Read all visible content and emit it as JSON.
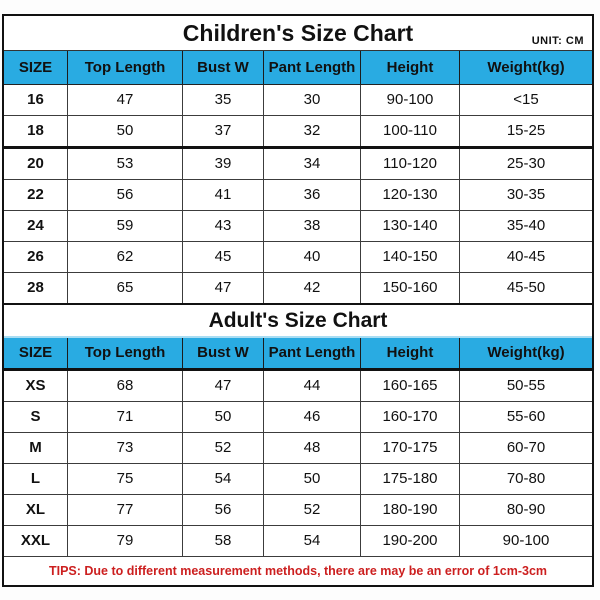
{
  "unit_label": "UNIT: CM",
  "colors": {
    "header_bg": "#29abe2",
    "tips_red": "#cc1f1f",
    "grid_line": "#3c3c3c",
    "outer_border": "#111111"
  },
  "children": {
    "title": "Children's Size Chart",
    "headers": [
      "SIZE",
      "Top Length",
      "Bust W",
      "Pant Length",
      "Height",
      "Weight(kg)"
    ],
    "rows": [
      [
        "16",
        "47",
        "35",
        "30",
        "90-100",
        "<15"
      ],
      [
        "18",
        "50",
        "37",
        "32",
        "100-110",
        "15-25"
      ],
      [
        "20",
        "53",
        "39",
        "34",
        "110-120",
        "25-30"
      ],
      [
        "22",
        "56",
        "41",
        "36",
        "120-130",
        "30-35"
      ],
      [
        "24",
        "59",
        "43",
        "38",
        "130-140",
        "35-40"
      ],
      [
        "26",
        "62",
        "45",
        "40",
        "140-150",
        "40-45"
      ],
      [
        "28",
        "65",
        "47",
        "42",
        "150-160",
        "45-50"
      ]
    ]
  },
  "adult": {
    "title": "Adult's Size Chart",
    "headers": [
      "SIZE",
      "Top Length",
      "Bust W",
      "Pant Length",
      "Height",
      "Weight(kg)"
    ],
    "rows": [
      [
        "XS",
        "68",
        "47",
        "44",
        "160-165",
        "50-55"
      ],
      [
        "S",
        "71",
        "50",
        "46",
        "160-170",
        "55-60"
      ],
      [
        "M",
        "73",
        "52",
        "48",
        "170-175",
        "60-70"
      ],
      [
        "L",
        "75",
        "54",
        "50",
        "175-180",
        "70-80"
      ],
      [
        "XL",
        "77",
        "56",
        "52",
        "180-190",
        "80-90"
      ],
      [
        "XXL",
        "79",
        "58",
        "54",
        "190-200",
        "90-100"
      ]
    ]
  },
  "tips": "TIPS: Due to different measurement methods, there are may be an error of 1cm-3cm",
  "chart_data": [
    {
      "type": "table",
      "title": "Children's Size Chart",
      "unit": "CM",
      "columns": [
        "SIZE",
        "Top Length",
        "Bust W",
        "Pant Length",
        "Height",
        "Weight(kg)"
      ],
      "rows": [
        [
          "16",
          47,
          35,
          30,
          "90-100",
          "<15"
        ],
        [
          "18",
          50,
          37,
          32,
          "100-110",
          "15-25"
        ],
        [
          "20",
          53,
          39,
          34,
          "110-120",
          "25-30"
        ],
        [
          "22",
          56,
          41,
          36,
          "120-130",
          "30-35"
        ],
        [
          "24",
          59,
          43,
          38,
          "130-140",
          "35-40"
        ],
        [
          "26",
          62,
          45,
          40,
          "140-150",
          "40-45"
        ],
        [
          "28",
          65,
          47,
          42,
          "150-160",
          "45-50"
        ]
      ]
    },
    {
      "type": "table",
      "title": "Adult's Size Chart",
      "unit": "CM",
      "columns": [
        "SIZE",
        "Top Length",
        "Bust W",
        "Pant Length",
        "Height",
        "Weight(kg)"
      ],
      "rows": [
        [
          "XS",
          68,
          47,
          44,
          "160-165",
          "50-55"
        ],
        [
          "S",
          71,
          50,
          46,
          "160-170",
          "55-60"
        ],
        [
          "M",
          73,
          52,
          48,
          "170-175",
          "60-70"
        ],
        [
          "L",
          75,
          54,
          50,
          "175-180",
          "70-80"
        ],
        [
          "XL",
          77,
          56,
          52,
          "180-190",
          "80-90"
        ],
        [
          "XXL",
          79,
          58,
          54,
          "190-200",
          "90-100"
        ]
      ],
      "footnote": "TIPS: Due to different measurement methods, there are may be an error of 1cm-3cm"
    }
  ]
}
